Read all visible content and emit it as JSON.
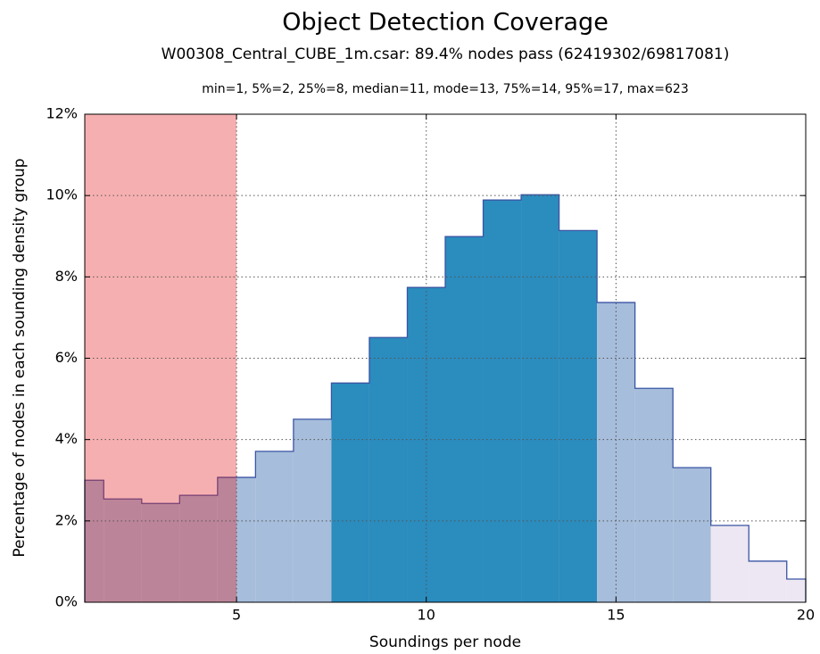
{
  "chart_data": {
    "type": "histogram",
    "title": "Object Detection Coverage",
    "subtitle": "W00308_Central_CUBE_1m.csar: 89.4% nodes pass (62419302/69817081)",
    "stats": "min=1, 5%=2, 25%=8, median=11, mode=13, 75%=14, 95%=17, max=623",
    "x_label": "Soundings per node",
    "y_label": "Percentage of nodes in each sounding density group",
    "bins": [
      1,
      1.5,
      2.5,
      3.5,
      4.5,
      5.5,
      6.5,
      7.5,
      8.5,
      9.5,
      10.5,
      11.5,
      12.5,
      13.5,
      14.5,
      15.5,
      16.5,
      17.5,
      18.5,
      19.5,
      20
    ],
    "values": [
      3.0,
      2.54,
      2.43,
      2.63,
      3.07,
      3.71,
      4.5,
      5.39,
      6.51,
      7.74,
      8.99,
      9.89,
      10.02,
      9.14,
      7.37,
      5.26,
      3.31,
      1.89,
      1.01,
      0.57
    ],
    "colors": [
      "#a6bddb",
      "#a6bddb",
      "#a6bddb",
      "#a6bddb",
      "#a6bddb",
      "#a6bddb",
      "#a6bddb",
      "#2b8cbe",
      "#2b8cbe",
      "#2b8cbe",
      "#2b8cbe",
      "#2b8cbe",
      "#2b8cbe",
      "#2b8cbe",
      "#a6bddb",
      "#a6bddb",
      "#a6bddb",
      "#ece7f2",
      "#ece7f2",
      "#ece7f2"
    ],
    "outline_color": "#3a55a4",
    "fail_threshold": 5,
    "fail_color": "#e41a1c",
    "xlim": [
      1,
      20
    ],
    "ylim": [
      0,
      12
    ],
    "xticks": [
      5,
      10,
      15,
      20
    ],
    "yticks": [
      {
        "value": 0,
        "label": "0%"
      },
      {
        "value": 2,
        "label": "2%"
      },
      {
        "value": 4,
        "label": "4%"
      },
      {
        "value": 6,
        "label": "6%"
      },
      {
        "value": 8,
        "label": "8%"
      },
      {
        "value": 10,
        "label": "10%"
      },
      {
        "value": 12,
        "label": "12%"
      }
    ],
    "grid": true
  }
}
